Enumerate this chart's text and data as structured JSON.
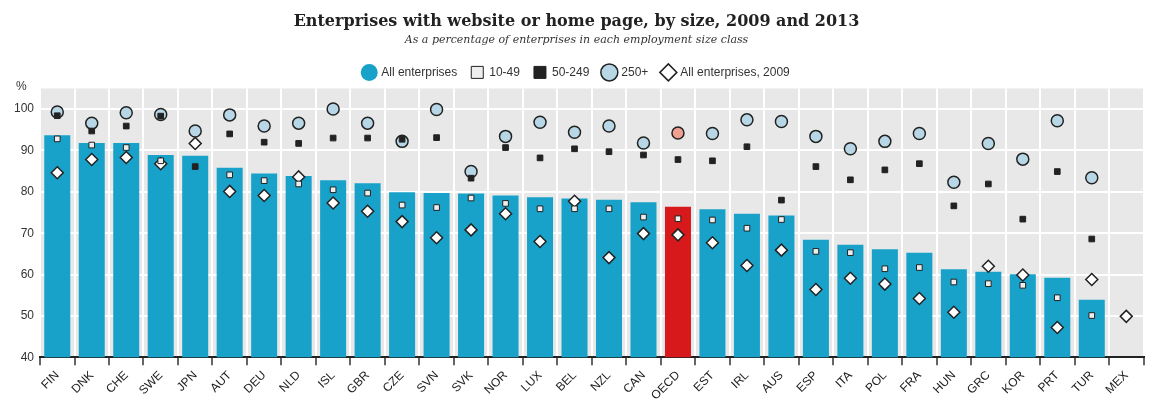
{
  "chart_data": {
    "type": "bar",
    "title": "Enterprises with website or home page, by size, 2009 and 2013",
    "subtitle": "As a percentage of enterprises in each employment size class",
    "ylabel": "%",
    "categories": [
      "FIN",
      "DNK",
      "CHE",
      "SWE",
      "JPN",
      "AUT",
      "DEU",
      "NLD",
      "ISL",
      "GBR",
      "CZE",
      "SVN",
      "SVK",
      "NOR",
      "LUX",
      "BEL",
      "NZL",
      "CAN",
      "OECD",
      "EST",
      "IRL",
      "AUS",
      "ESP",
      "ITA",
      "POL",
      "FRA",
      "HUN",
      "GRC",
      "KOR",
      "PRT",
      "TUR",
      "MEX"
    ],
    "series": [
      {
        "name": "All enterprises",
        "type": "bar",
        "colors": [
          "#18a2c9",
          "#18a2c9",
          "#18a2c9",
          "#18a2c9",
          "#18a2c9",
          "#18a2c9",
          "#18a2c9",
          "#18a2c9",
          "#18a2c9",
          "#18a2c9",
          "#18a2c9",
          "#18a2c9",
          "#18a2c9",
          "#18a2c9",
          "#18a2c9",
          "#18a2c9",
          "#18a2c9",
          "#18a2c9",
          "#d7191c",
          "#18a2c9",
          "#18a2c9",
          "#18a2c9",
          "#18a2c9",
          "#18a2c9",
          "#18a2c9",
          "#18a2c9",
          "#18a2c9",
          "#18a2c9",
          "#18a2c9",
          "#18a2c9",
          "#18a2c9",
          "#18a2c9"
        ],
        "values": [
          93.7,
          91.8,
          91.8,
          88.9,
          88.7,
          85.8,
          84.4,
          83.8,
          82.8,
          82.1,
          79.9,
          79.7,
          79.6,
          79.1,
          78.7,
          78.4,
          78.1,
          77.5,
          76.4,
          75.8,
          74.7,
          74.3,
          68.4,
          67.2,
          66.1,
          65.3,
          61.3,
          60.7,
          60.1,
          59.2,
          53.9,
          null
        ]
      },
      {
        "name": "10-49",
        "type": "scatter",
        "marker": "square",
        "color": "#eeeeee",
        "values": [
          92.8,
          91.3,
          90.7,
          87.5,
          null,
          84.1,
          82.7,
          81.9,
          80.5,
          79.7,
          76.8,
          76.2,
          78.5,
          77.2,
          75.9,
          75.9,
          75.9,
          73.9,
          73.5,
          73.2,
          71.2,
          73.3,
          65.6,
          65.3,
          61.4,
          61.7,
          58.2,
          57.8,
          57.4,
          54.4,
          50.1,
          null
        ]
      },
      {
        "name": "50-249",
        "type": "scatter",
        "marker": "square",
        "color": "#222222",
        "values": [
          98.4,
          94.7,
          95.9,
          98.3,
          86.1,
          94.0,
          92.0,
          91.7,
          93.0,
          93.0,
          92.7,
          93.1,
          83.3,
          90.7,
          88.2,
          90.4,
          89.7,
          88.9,
          87.8,
          87.5,
          90.9,
          78.0,
          86.1,
          82.9,
          85.3,
          86.8,
          76.6,
          81.9,
          73.4,
          84.9,
          68.6,
          null
        ]
      },
      {
        "name": "250+",
        "type": "scatter",
        "marker": "circle",
        "color": "#b7d7e6",
        "colors": [
          "#b7d7e6",
          "#b7d7e6",
          "#b7d7e6",
          "#b7d7e6",
          "#b7d7e6",
          "#b7d7e6",
          "#b7d7e6",
          "#b7d7e6",
          "#b7d7e6",
          "#b7d7e6",
          "#b7d7e6",
          "#b7d7e6",
          "#b7d7e6",
          "#b7d7e6",
          "#b7d7e6",
          "#b7d7e6",
          "#b7d7e6",
          "#b7d7e6",
          "#f0a090",
          "#b7d7e6",
          "#b7d7e6",
          "#b7d7e6",
          "#b7d7e6",
          "#b7d7e6",
          "#b7d7e6",
          "#b7d7e6",
          "#b7d7e6",
          "#b7d7e6",
          "#b7d7e6",
          "#b7d7e6",
          "#b7d7e6",
          "#b7d7e6"
        ],
        "values": [
          99.3,
          96.6,
          99.1,
          98.7,
          94.7,
          98.6,
          95.9,
          96.6,
          100,
          96.6,
          92.2,
          99.9,
          84.9,
          93.4,
          96.8,
          94.4,
          95.9,
          91.8,
          94.2,
          94.1,
          97.4,
          97.0,
          93.4,
          90.4,
          92.2,
          94.1,
          82.3,
          91.7,
          87.9,
          97.2,
          83.4,
          null
        ]
      },
      {
        "name": "All enterprises, 2009",
        "type": "scatter",
        "marker": "diamond",
        "color": "#ffffff",
        "values": [
          84.6,
          87.8,
          88.3,
          86.8,
          91.7,
          80.1,
          79.1,
          83.6,
          77.3,
          75.3,
          72.8,
          68.9,
          70.8,
          74.7,
          68.0,
          77.7,
          64.1,
          69.9,
          69.6,
          67.7,
          62.2,
          65.9,
          56.4,
          59.1,
          57.7,
          54.2,
          50.9,
          62.0,
          59.9,
          47.2,
          58.8,
          49.9
        ]
      }
    ],
    "ylim": [
      40,
      105
    ],
    "yticks": [
      40,
      50,
      60,
      70,
      80,
      90,
      100
    ],
    "grid": true,
    "legend": "top"
  }
}
